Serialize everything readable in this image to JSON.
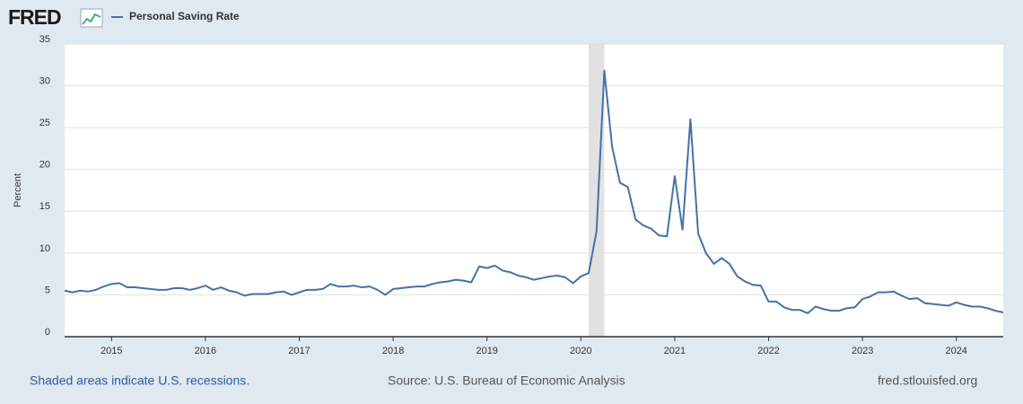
{
  "header": {
    "logo": "FRED"
  },
  "chart_data": {
    "type": "line",
    "y_label": "Percent",
    "x": [
      2014.5,
      2014.583,
      2014.667,
      2014.75,
      2014.833,
      2014.917,
      2015,
      2015.083,
      2015.167,
      2015.25,
      2015.333,
      2015.417,
      2015.5,
      2015.583,
      2015.667,
      2015.75,
      2015.833,
      2015.917,
      2016,
      2016.083,
      2016.167,
      2016.25,
      2016.333,
      2016.417,
      2016.5,
      2016.583,
      2016.667,
      2016.75,
      2016.833,
      2016.917,
      2017,
      2017.083,
      2017.167,
      2017.25,
      2017.333,
      2017.417,
      2017.5,
      2017.583,
      2017.667,
      2017.75,
      2017.833,
      2017.917,
      2018,
      2018.083,
      2018.167,
      2018.25,
      2018.333,
      2018.417,
      2018.5,
      2018.583,
      2018.667,
      2018.75,
      2018.833,
      2018.917,
      2019,
      2019.083,
      2019.167,
      2019.25,
      2019.333,
      2019.417,
      2019.5,
      2019.583,
      2019.667,
      2019.75,
      2019.833,
      2019.917,
      2020,
      2020.083,
      2020.167,
      2020.25,
      2020.333,
      2020.417,
      2020.5,
      2020.583,
      2020.667,
      2020.75,
      2020.833,
      2020.917,
      2021,
      2021.083,
      2021.167,
      2021.25,
      2021.333,
      2021.417,
      2021.5,
      2021.583,
      2021.667,
      2021.75,
      2021.833,
      2021.917,
      2022,
      2022.083,
      2022.167,
      2022.25,
      2022.333,
      2022.417,
      2022.5,
      2022.583,
      2022.667,
      2022.75,
      2022.833,
      2022.917,
      2023,
      2023.083,
      2023.167,
      2023.25,
      2023.333,
      2023.417,
      2023.5,
      2023.583,
      2023.667,
      2023.75,
      2023.833,
      2023.917,
      2024,
      2024.083,
      2024.167,
      2024.25,
      2024.333,
      2024.417,
      2024.5
    ],
    "series": [
      {
        "name": "Personal Saving Rate",
        "color": "#4572a7",
        "values": [
          5.5,
          5.3,
          5.5,
          5.4,
          5.6,
          6.0,
          6.3,
          6.4,
          5.9,
          5.9,
          5.8,
          5.7,
          5.6,
          5.6,
          5.8,
          5.8,
          5.6,
          5.8,
          6.1,
          5.6,
          5.9,
          5.5,
          5.3,
          4.9,
          5.1,
          5.1,
          5.1,
          5.3,
          5.4,
          5.0,
          5.3,
          5.6,
          5.6,
          5.7,
          6.3,
          6.0,
          6.0,
          6.1,
          5.9,
          6.0,
          5.6,
          5.0,
          5.7,
          5.8,
          5.9,
          6.0,
          6.0,
          6.3,
          6.5,
          6.6,
          6.8,
          6.7,
          6.5,
          8.4,
          8.2,
          8.5,
          7.9,
          7.7,
          7.3,
          7.1,
          6.8,
          7.0,
          7.2,
          7.3,
          7.1,
          6.4,
          7.2,
          7.6,
          12.6,
          31.8,
          22.7,
          18.4,
          17.9,
          14.0,
          13.3,
          12.9,
          12.1,
          12.0,
          19.2,
          12.8,
          26.0,
          12.3,
          10.0,
          8.7,
          9.4,
          8.7,
          7.2,
          6.6,
          6.2,
          6.1,
          4.2,
          4.2,
          3.5,
          3.2,
          3.2,
          2.8,
          3.6,
          3.3,
          3.1,
          3.1,
          3.4,
          3.5,
          4.5,
          4.8,
          5.3,
          5.3,
          5.4,
          4.9,
          4.5,
          4.6,
          4.0,
          3.9,
          3.8,
          3.7,
          4.1,
          3.8,
          3.6,
          3.6,
          3.4,
          3.1,
          2.9
        ]
      }
    ],
    "recessions": [
      {
        "start": 2020.083,
        "end": 2020.25
      }
    ],
    "recession_color": "#e1e1e1",
    "xlim": [
      2014.5,
      2024.5
    ],
    "xticks": [
      2015,
      2016,
      2017,
      2018,
      2019,
      2020,
      2021,
      2022,
      2023,
      2024
    ],
    "ylim": [
      0,
      35
    ],
    "yticks": [
      0,
      5,
      10,
      15,
      20,
      25,
      30,
      35
    ],
    "grid": true
  },
  "footer": {
    "note": "Shaded areas indicate U.S. recessions.",
    "source": "Source: U.S. Bureau of Economic Analysis",
    "site": "fred.stlouisfed.org"
  }
}
